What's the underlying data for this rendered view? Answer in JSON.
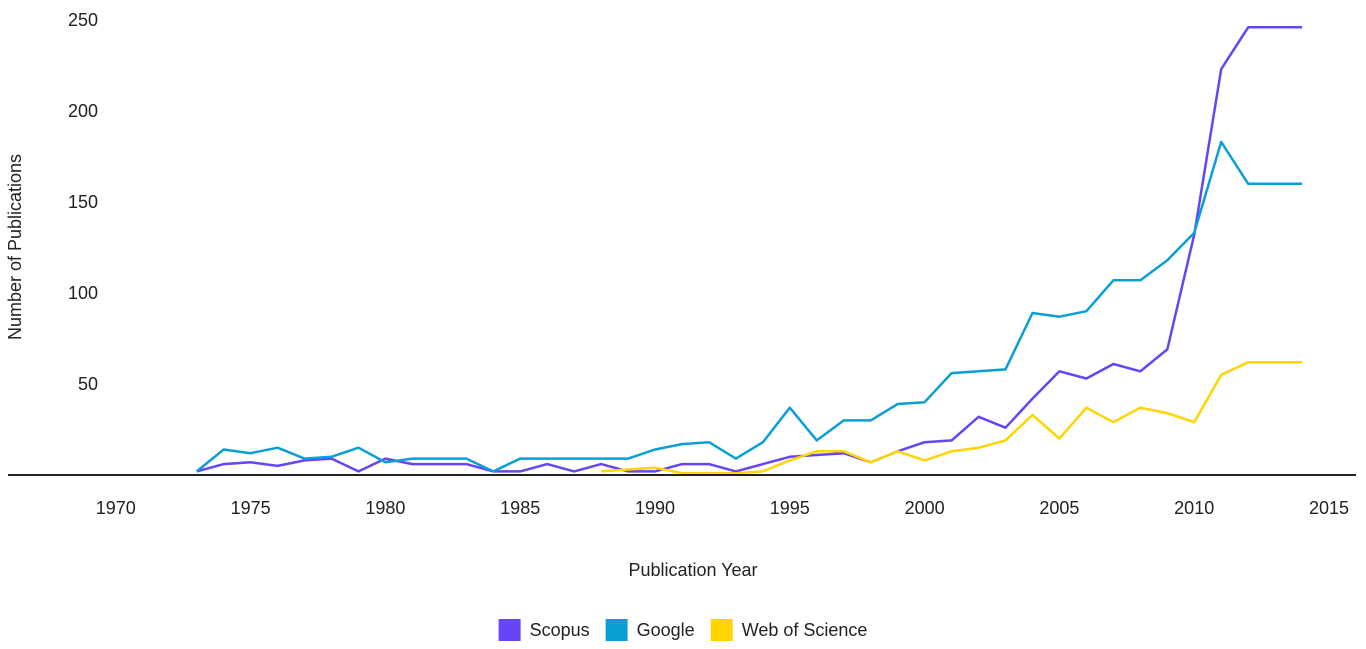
{
  "chart_data": {
    "type": "line",
    "xlabel": "Publication Year",
    "ylabel": "Number of Publications",
    "xlim": [
      1966,
      2016
    ],
    "ylim": [
      0,
      250
    ],
    "x_ticks": [
      1970,
      1975,
      1980,
      1985,
      1990,
      1995,
      2000,
      2005,
      2010,
      2015
    ],
    "y_ticks": [
      50,
      100,
      150,
      200,
      250
    ],
    "grid": false,
    "legend_position": "bottom-center",
    "series": [
      {
        "name": "Scopus",
        "color": "#6744f5",
        "x": [
          1973,
          1974,
          1975,
          1976,
          1977,
          1978,
          1979,
          1980,
          1981,
          1982,
          1983,
          1984,
          1985,
          1986,
          1987,
          1988,
          1989,
          1990,
          1991,
          1992,
          1993,
          1994,
          1995,
          1996,
          1997,
          1998,
          1999,
          2000,
          2001,
          2002,
          2003,
          2004,
          2005,
          2006,
          2007,
          2008,
          2009,
          2010,
          2011,
          2012,
          2013,
          2014
        ],
        "y": [
          2,
          6,
          7,
          5,
          8,
          9,
          2,
          9,
          6,
          6,
          6,
          2,
          2,
          6,
          2,
          6,
          2,
          2,
          6,
          6,
          2,
          6,
          10,
          11,
          12,
          7,
          13,
          18,
          19,
          32,
          26,
          42,
          57,
          53,
          61,
          57,
          69,
          132,
          223,
          246,
          246,
          246
        ]
      },
      {
        "name": "Google",
        "color": "#0b9fd6",
        "x": [
          1973,
          1974,
          1975,
          1976,
          1977,
          1978,
          1979,
          1980,
          1981,
          1982,
          1983,
          1984,
          1985,
          1986,
          1987,
          1988,
          1989,
          1990,
          1991,
          1992,
          1993,
          1994,
          1995,
          1996,
          1997,
          1998,
          1999,
          2000,
          2001,
          2002,
          2003,
          2004,
          2005,
          2006,
          2007,
          2008,
          2009,
          2010,
          2011,
          2012,
          2013,
          2014
        ],
        "y": [
          2,
          14,
          12,
          15,
          9,
          10,
          15,
          7,
          9,
          9,
          9,
          2,
          9,
          9,
          9,
          9,
          9,
          14,
          17,
          18,
          9,
          18,
          37,
          19,
          30,
          30,
          39,
          40,
          56,
          57,
          58,
          89,
          87,
          90,
          107,
          107,
          118,
          133,
          183,
          160,
          160,
          160
        ]
      },
      {
        "name": "Web of Science",
        "color": "#ffd400",
        "x": [
          1988,
          1989,
          1990,
          1991,
          1992,
          1993,
          1994,
          1995,
          1996,
          1997,
          1998,
          1999,
          2000,
          2001,
          2002,
          2003,
          2004,
          2005,
          2006,
          2007,
          2008,
          2009,
          2010,
          2011,
          2012,
          2013,
          2014
        ],
        "y": [
          2,
          3,
          4,
          1,
          1,
          1,
          2,
          8,
          13,
          13,
          7,
          13,
          8,
          13,
          15,
          19,
          33,
          20,
          37,
          29,
          37,
          34,
          29,
          55,
          62,
          62,
          62
        ]
      }
    ]
  }
}
